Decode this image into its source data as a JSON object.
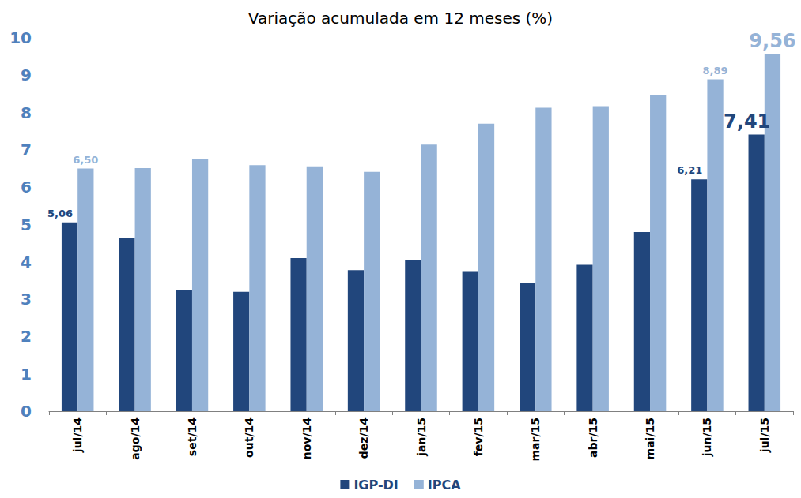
{
  "chart_data": {
    "type": "bar",
    "title": "Variação acumulada em 12 meses (%)",
    "categories": [
      "jul/14",
      "ago/14",
      "set/14",
      "out/14",
      "nov/14",
      "dez/14",
      "jan/15",
      "fev/15",
      "mar/15",
      "abr/15",
      "mai/15",
      "jun/15",
      "jul/15"
    ],
    "series": [
      {
        "name": "IGP-DI",
        "color": "#21467c",
        "values": [
          5.06,
          4.65,
          3.25,
          3.2,
          4.1,
          3.78,
          4.05,
          3.73,
          3.43,
          3.92,
          4.8,
          6.21,
          7.41
        ],
        "value_labels": [
          "5,06",
          null,
          null,
          null,
          null,
          null,
          null,
          null,
          null,
          null,
          null,
          "6,21",
          "7,41"
        ]
      },
      {
        "name": "IPCA",
        "color": "#95b3d7",
        "values": [
          6.5,
          6.51,
          6.75,
          6.59,
          6.56,
          6.41,
          7.14,
          7.7,
          8.13,
          8.17,
          8.47,
          8.89,
          9.56
        ],
        "value_labels": [
          "6,50",
          null,
          null,
          null,
          null,
          null,
          null,
          null,
          null,
          null,
          null,
          "8,89",
          "9,56"
        ]
      }
    ],
    "ylim": [
      0,
      10
    ],
    "yticks": [
      0,
      1,
      2,
      3,
      4,
      5,
      6,
      7,
      8,
      9,
      10
    ],
    "grid": false,
    "legend": "bottom",
    "data_labels": true
  }
}
